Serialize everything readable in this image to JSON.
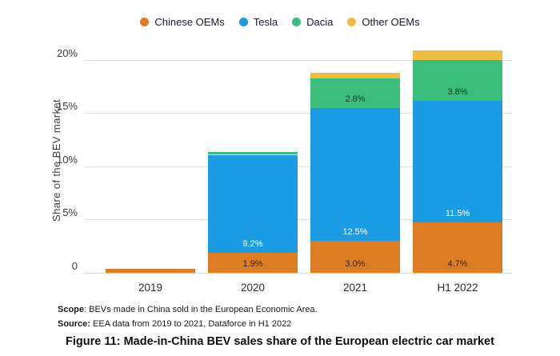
{
  "legend": {
    "items": [
      {
        "label": "Chinese OEMs",
        "color": "#DD7C22"
      },
      {
        "label": "Tesla",
        "color": "#1A9CE5"
      },
      {
        "label": "Dacia",
        "color": "#3BBE7C"
      },
      {
        "label": "Other OEMs",
        "color": "#EEBD40"
      }
    ]
  },
  "chart_data": {
    "type": "bar",
    "stacked": true,
    "title": "",
    "ylabel": "Share of the BEV market",
    "xlabel": "",
    "categories": [
      "2019",
      "2020",
      "2021",
      "H1 2022"
    ],
    "series": [
      {
        "name": "Chinese OEMs",
        "color": "#DD7C22",
        "label_color": "#26262a",
        "values": [
          0.4,
          1.9,
          3.0,
          4.7
        ],
        "data_labels": [
          "",
          "1.9%",
          "3.0%",
          "4.7%"
        ]
      },
      {
        "name": "Tesla",
        "color": "#1A9CE5",
        "label_color": "#ffffff",
        "values": [
          0,
          9.2,
          12.5,
          11.5
        ],
        "data_labels": [
          "",
          "9.2%",
          "12.5%",
          "11.5%"
        ]
      },
      {
        "name": "Dacia",
        "color": "#3BBE7C",
        "label_color": "#1f3027",
        "values": [
          0,
          0.2,
          2.8,
          3.8
        ],
        "data_labels": [
          "",
          "",
          "2.8%",
          "3.8%"
        ]
      },
      {
        "name": "Other OEMs",
        "color": "#EEBD40",
        "label_color": "#3a3214",
        "values": [
          0,
          0,
          0.5,
          0.9
        ],
        "data_labels": [
          "",
          "",
          "",
          ""
        ]
      }
    ],
    "yticks": [
      {
        "value": 0,
        "label": "0"
      },
      {
        "value": 5,
        "label": "5%"
      },
      {
        "value": 10,
        "label": "10%"
      },
      {
        "value": 15,
        "label": "15%"
      },
      {
        "value": 20,
        "label": "20%"
      }
    ],
    "ylim": [
      0,
      21
    ],
    "grid": true,
    "legend_position": "top"
  },
  "footer": {
    "scope_label": "Scope",
    "scope_text": ": BEVs made in China sold in the European Economic Area.",
    "source_label": "Source:",
    "source_text": " EEA data from 2019 to 2021, Dataforce in H1 2022"
  },
  "caption": "Figure 11: Made-in-China BEV sales share of the European electric car market"
}
